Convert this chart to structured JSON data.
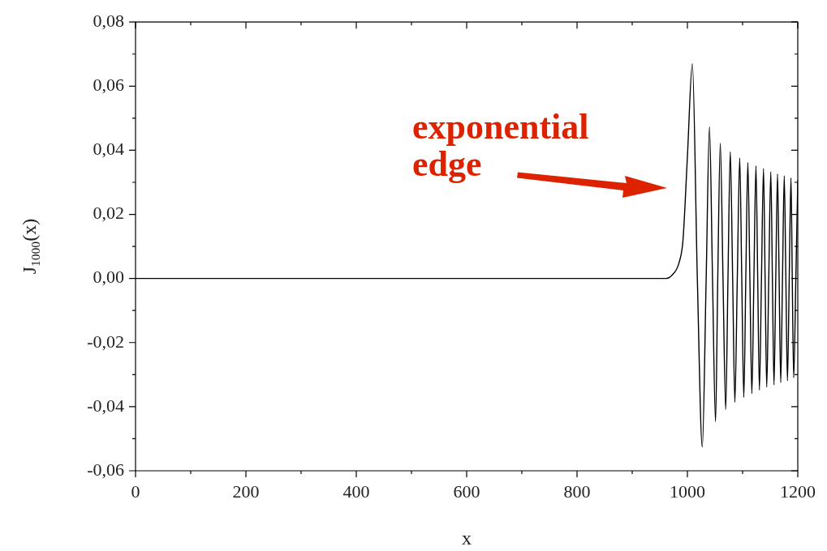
{
  "chart_data": {
    "type": "line",
    "xlabel": "x",
    "ylabel": "J$_{1000}$(x)",
    "xlim": [
      0,
      1200
    ],
    "ylim": [
      -0.06,
      0.08
    ],
    "xticks": [
      0,
      {
        "value": 100,
        "label": null
      },
      200,
      {
        "value": 300,
        "label": null
      },
      400,
      {
        "value": 500,
        "label": null
      },
      600,
      {
        "value": 700,
        "label": null
      },
      800,
      {
        "value": 900,
        "label": null
      },
      1000,
      {
        "value": 1100,
        "label": null
      },
      1200
    ],
    "yticks": [
      {
        "value": -0.06,
        "label": "-0,06"
      },
      {
        "value": -0.05,
        "label": null
      },
      {
        "value": -0.04,
        "label": "-0,04"
      },
      {
        "value": -0.03,
        "label": null
      },
      {
        "value": -0.02,
        "label": "-0,02"
      },
      {
        "value": -0.01,
        "label": null
      },
      {
        "value": 0,
        "label": "0,00"
      },
      {
        "value": 0.01,
        "label": null
      },
      {
        "value": 0.02,
        "label": "0,02"
      },
      {
        "value": 0.03,
        "label": null
      },
      {
        "value": 0.04,
        "label": "0,04"
      },
      {
        "value": 0.05,
        "label": null
      },
      {
        "value": 0.06,
        "label": "0,06"
      },
      {
        "value": 0.07,
        "label": null
      },
      {
        "value": 0.08,
        "label": "0,08"
      }
    ],
    "grid": false,
    "legend": false,
    "marker": "none",
    "line_style": "solid",
    "annotations": [
      "exponential edge"
    ],
    "series": [
      {
        "color": "#000000",
        "x": [
          0,
          960,
          972,
          985,
          992,
          1000,
          1009,
          1018,
          1027,
          1034,
          1040,
          1045.5,
          1051,
          1055,
          1059.6,
          1064.5,
          1069.4,
          1073.5,
          1077.7,
          1082,
          1086,
          1090.4,
          1094.8,
          1098.5,
          1102.2,
          1105.8,
          1109.5,
          1113.2,
          1116.8,
          1120.5,
          1124.2,
          1127.4,
          1130.5,
          1134.2,
          1137.9,
          1140.8,
          1143.7,
          1147.4,
          1151.1,
          1154,
          1156.9,
          1160.1,
          1163.3,
          1166.2,
          1169.1,
          1172.3,
          1175.5,
          1178.4,
          1181.3,
          1184.5,
          1187.7,
          1190,
          1192.6,
          1196.5,
          1200
        ],
        "values": [
          0,
          0,
          0.001,
          0.005,
          0.012,
          0.038,
          0.067,
          0,
          -0.0526,
          0,
          0.0473,
          0,
          -0.0447,
          0,
          0.0422,
          0,
          -0.0409,
          0,
          0.0395,
          0,
          -0.0386,
          0,
          0.0376,
          0,
          -0.0371,
          0,
          0.0362,
          0,
          -0.0359,
          0,
          0.0351,
          0,
          -0.0348,
          0,
          0.0343,
          0,
          -0.0339,
          0,
          0.0333,
          0,
          -0.0332,
          0,
          0.0326,
          0,
          -0.0325,
          0,
          0.032,
          0,
          -0.0319,
          0,
          0.0314,
          0,
          -0.031,
          0,
          0.0307
        ]
      }
    ]
  }
}
